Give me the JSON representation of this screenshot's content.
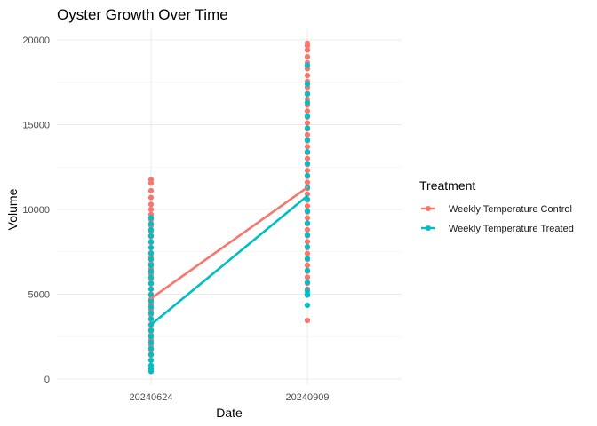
{
  "chart_data": {
    "type": "scatter",
    "title": "Oyster Growth Over Time",
    "xlabel": "Date",
    "ylabel": "Volume",
    "categories": [
      "20240624",
      "20240909"
    ],
    "ylim": [
      0,
      20000
    ],
    "yticks": [
      0,
      5000,
      10000,
      15000,
      20000
    ],
    "grid": true,
    "legend": {
      "title": "Treatment",
      "position": "right"
    },
    "series": [
      {
        "name": "Weekly Temperature Control",
        "color": "#F8766D",
        "means": [
          4750,
          11300
        ],
        "points": [
          [
            11750,
            11550,
            11100,
            10700,
            10300,
            10000,
            9700,
            9400,
            9050,
            8700,
            8400,
            8050,
            7750,
            7450,
            7150,
            6800,
            6500,
            6200,
            5900,
            5600,
            5300,
            5000,
            4700,
            4400,
            4100,
            3800,
            3500,
            3200,
            2900,
            2600,
            2300,
            2000,
            1700,
            1400
          ],
          [
            19800,
            19650,
            19400,
            19000,
            18650,
            18300,
            17900,
            17550,
            17200,
            16850,
            16500,
            16150,
            15800,
            15450,
            15100,
            14750,
            14400,
            14050,
            13700,
            13350,
            13000,
            12650,
            12300,
            11950,
            11600,
            11250,
            10900,
            10550,
            10200,
            9850,
            9500,
            9150,
            8800,
            8450,
            8100,
            7750,
            7400,
            7050,
            6700,
            6350,
            6000,
            5650,
            5300,
            4950,
            3450
          ]
        ]
      },
      {
        "name": "Weekly Temperature Treated",
        "color": "#00BFC4",
        "means": [
          3200,
          10800
        ],
        "points": [
          [
            9500,
            9150,
            8800,
            8450,
            8100,
            7750,
            7400,
            7050,
            6700,
            6350,
            6000,
            5650,
            5300,
            4950,
            4600,
            4250,
            3900,
            3550,
            3200,
            2850,
            2500,
            2150,
            1800,
            1450,
            1100,
            800,
            600,
            450
          ],
          [
            18500,
            17400,
            16800,
            16300,
            15500,
            14800,
            14100,
            13400,
            12700,
            12000,
            11300,
            10600,
            9900,
            9200,
            8500,
            7800,
            7100,
            6400,
            5700,
            5200,
            5000,
            4950,
            4350
          ]
        ]
      }
    ]
  }
}
